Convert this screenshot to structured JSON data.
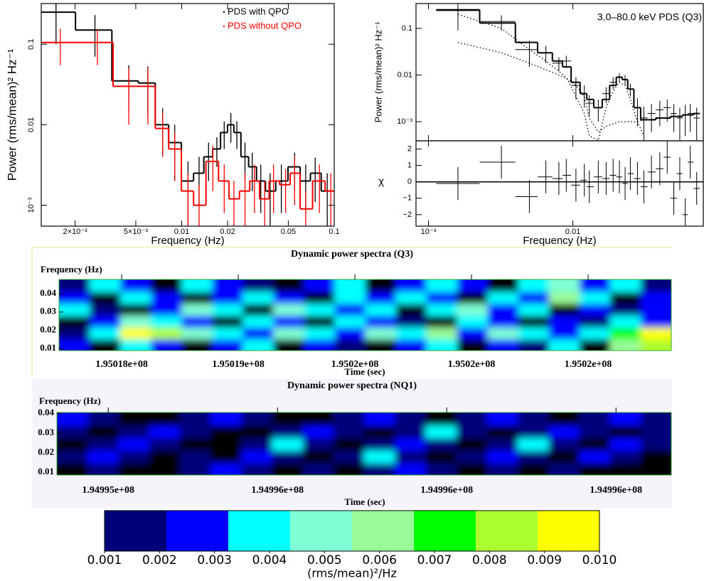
{
  "chart_data": [
    {
      "type": "step",
      "xlabel": "Frequency (Hz)",
      "ylabel": "Power (rms/mean)² Hz⁻¹",
      "xscale": "log",
      "yscale": "log",
      "xlim": [
        0.0012,
        0.1
      ],
      "ylim": [
        0.00055,
        0.32
      ],
      "xticks": [
        {
          "value": 0.002,
          "label": "2×10⁻³"
        },
        {
          "value": 0.005,
          "label": "5×10⁻³"
        },
        0.01,
        0.02,
        0.05,
        0.1
      ],
      "yticks": [
        {
          "value": 0.001,
          "label": "10⁻³"
        },
        0.01,
        0.1
      ],
      "legend": "upper right",
      "series": [
        {
          "name": "PDS with QPO",
          "color": "#000000",
          "x": [
            0.0015,
            0.0027,
            0.0045,
            0.006,
            0.0075,
            0.009,
            0.011,
            0.013,
            0.015,
            0.017,
            0.019,
            0.021,
            0.023,
            0.026,
            0.029,
            0.033,
            0.038,
            0.045,
            0.055,
            0.065,
            0.075,
            0.09
          ],
          "values": [
            0.25,
            0.15,
            0.035,
            0.033,
            0.01,
            0.006,
            0.002,
            0.0025,
            0.004,
            0.005,
            0.008,
            0.01,
            0.008,
            0.004,
            0.003,
            0.002,
            0.0015,
            0.002,
            0.003,
            0.002,
            0.0025,
            0.0015
          ],
          "errors": [
            0.15,
            0.08,
            0.02,
            0.02,
            0.006,
            0.004,
            0.0015,
            0.0015,
            0.002,
            0.002,
            0.003,
            0.004,
            0.003,
            0.002,
            0.0015,
            0.0012,
            0.001,
            0.0012,
            0.0015,
            0.0012,
            0.0014,
            0.001
          ]
        },
        {
          "name": "PDS without QPO",
          "color": "#ff0000",
          "x": [
            0.0016,
            0.0028,
            0.0045,
            0.006,
            0.0075,
            0.009,
            0.011,
            0.013,
            0.016,
            0.019,
            0.022,
            0.026,
            0.03,
            0.035,
            0.04,
            0.048,
            0.055,
            0.065,
            0.08,
            0.095
          ],
          "values": [
            0.105,
            0.105,
            0.03,
            0.03,
            0.009,
            0.005,
            0.0015,
            0.001,
            0.0035,
            0.002,
            0.0012,
            0.0015,
            0.002,
            0.0012,
            0.002,
            0.0018,
            0.0025,
            0.0009,
            0.002,
            0.0015
          ],
          "errors": [
            0.05,
            0.05,
            0.02,
            0.02,
            0.005,
            0.003,
            0.001,
            0.0008,
            0.002,
            0.0012,
            0.0008,
            0.001,
            0.0012,
            0.0008,
            0.0012,
            0.001,
            0.0015,
            0.0006,
            0.0012,
            0.001
          ]
        }
      ]
    },
    {
      "type": "step_fit",
      "annotation": "3.0–80.0 keV PDS (Q3)",
      "xlabel": "Frequency (Hz)",
      "ylabel": "Power (rms/mean)² Hz⁻¹",
      "residual_ylabel": "χ",
      "xscale": "log",
      "yscale": "log",
      "xlim": [
        0.00082,
        0.08
      ],
      "ylim": [
        0.00039,
        0.34
      ],
      "xticks": [
        {
          "value": 0.001,
          "label": "10⁻³"
        },
        0.01
      ],
      "yticks": [
        {
          "value": 0.001,
          "label": "10⁻³"
        },
        0.01,
        0.1
      ],
      "residual_ylim": [
        -2.7,
        2.5
      ],
      "residual_yticks": [
        {
          "value": -2,
          "label": "−2"
        },
        {
          "value": -1,
          "label": "−1"
        },
        0,
        1,
        2
      ],
      "x": [
        0.0016,
        0.0032,
        0.005,
        0.0065,
        0.008,
        0.009,
        0.0105,
        0.012,
        0.013,
        0.015,
        0.017,
        0.019,
        0.021,
        0.023,
        0.025,
        0.028,
        0.031,
        0.035,
        0.04,
        0.045,
        0.05,
        0.055,
        0.06,
        0.065,
        0.072
      ],
      "values": [
        0.24,
        0.14,
        0.035,
        0.03,
        0.018,
        0.02,
        0.006,
        0.004,
        0.0025,
        0.002,
        0.004,
        0.007,
        0.009,
        0.008,
        0.005,
        0.002,
        0.0012,
        0.0015,
        0.0018,
        0.002,
        0.0015,
        0.0012,
        0.0014,
        0.0015,
        0.0012
      ],
      "errors": [
        0.15,
        0.05,
        0.02,
        0.012,
        0.006,
        0.006,
        0.003,
        0.002,
        0.0012,
        0.001,
        0.0015,
        0.002,
        0.002,
        0.002,
        0.0015,
        0.0012,
        0.0009,
        0.0009,
        0.001,
        0.001,
        0.0009,
        0.0008,
        0.0009,
        0.0009,
        0.0008
      ],
      "model": [
        0.25,
        0.13,
        0.05,
        0.03,
        0.02,
        0.015,
        0.007,
        0.004,
        0.003,
        0.002,
        0.003,
        0.006,
        0.009,
        0.008,
        0.005,
        0.002,
        0.0011,
        0.0011,
        0.0012,
        0.0012,
        0.0013,
        0.0013,
        0.0014,
        0.0014,
        0.0015
      ],
      "components": [
        [
          0.05,
          0.03,
          0.018,
          0.013,
          0.01,
          0.0085,
          0.006,
          0.0035,
          0.0012,
          0.0006,
          0.0008,
          0.0009,
          0.001,
          0.001,
          0.001,
          0.001,
          0.0011,
          0.0011,
          0.0012,
          0.0012,
          0.0013,
          0.0013,
          0.0014,
          0.0014,
          0.0015
        ],
        [
          0.2,
          0.1,
          0.035,
          0.02,
          0.012,
          0.009,
          0.0035,
          0.0015,
          0.0005,
          0.0004,
          0.002,
          0.0045,
          0.007,
          0.006,
          0.003,
          0.001,
          0.0005,
          null,
          null,
          null,
          null,
          null,
          null,
          null,
          null
        ]
      ],
      "residuals": [
        -0.1,
        1.2,
        -0.9,
        0.3,
        0.2,
        0.4,
        -0.2,
        0.1,
        -0.3,
        0.3,
        0.2,
        0.4,
        0.3,
        -0.1,
        0.5,
        0.2,
        -0.3,
        0.6,
        0.8,
        1.5,
        -1,
        0.5,
        -2,
        1.2,
        -0.4
      ],
      "residual_errors": [
        1,
        1,
        1,
        1,
        1,
        1,
        1,
        1,
        1,
        1,
        1,
        1,
        1,
        1,
        1,
        1,
        1,
        1,
        1,
        1,
        1,
        1,
        1,
        1,
        1
      ]
    },
    {
      "type": "heatmap",
      "title": "Dynamic power spectra (Q3)",
      "ylabel": "Frequency (Hz)",
      "xlabel": "Time (sec)",
      "xlim": [
        195017463,
        195022713
      ],
      "ylim": [
        0.0089,
        0.0478
      ],
      "xticks": [
        {
          "value": 195018000,
          "label": "1.95018e+08"
        },
        {
          "value": 195019000,
          "label": "1.95019e+08"
        },
        {
          "value": 195020000,
          "label": "1.9502e+08"
        },
        {
          "value": 195021000,
          "label": "1.9502e+08"
        },
        {
          "value": 195022000,
          "label": "1.9502e+08"
        }
      ],
      "yticks": [
        0.01,
        0.02,
        0.03,
        0.04
      ],
      "z": [
        [
          0.003,
          0.0008,
          0.004,
          0.003,
          0.0006,
          0.003,
          0.004,
          0.0007,
          0.003,
          0.002,
          0.0008,
          0.003,
          0.004,
          0.0009,
          0.003,
          0.002,
          0.004,
          0.0007,
          0.006,
          0.008
        ],
        [
          0.002,
          0.004,
          0.009,
          0.008,
          0.005,
          0.004,
          0.003,
          0.005,
          0.004,
          0.003,
          0.005,
          0.004,
          0.006,
          0.003,
          0.005,
          0.004,
          0.003,
          0.004,
          0.007,
          0.009
        ],
        [
          0.0007,
          0.003,
          0.005,
          0.004,
          0.003,
          0.0008,
          0.004,
          0.003,
          0.0006,
          0.004,
          0.003,
          0.002,
          0.0008,
          0.004,
          0.003,
          0.0007,
          0.003,
          0.002,
          0.004,
          0.003
        ],
        [
          0.004,
          0.002,
          0.0008,
          0.003,
          0.005,
          0.004,
          0.0009,
          0.005,
          0.004,
          0.003,
          0.004,
          0.0007,
          0.004,
          0.005,
          0.003,
          0.004,
          0.0008,
          0.003,
          0.002,
          0.003
        ],
        [
          0.003,
          0.0009,
          0.004,
          0.003,
          0.0006,
          0.003,
          0.004,
          0.003,
          0.0008,
          0.004,
          0.003,
          0.004,
          0.003,
          0.0007,
          0.004,
          0.003,
          0.006,
          0.004,
          0.0009,
          0.003
        ],
        [
          0.002,
          0.004,
          0.003,
          0.0007,
          0.004,
          0.003,
          0.002,
          0.0008,
          0.003,
          0.004,
          0.0006,
          0.003,
          0.004,
          0.003,
          0.0009,
          0.004,
          0.005,
          0.003,
          0.004,
          0.002
        ]
      ]
    },
    {
      "type": "heatmap",
      "title": "Dynamic power spectra (NQ1)",
      "ylabel": "Frequency (Hz)",
      "xlabel": "Time (sec)",
      "xlim": [
        194995209,
        194996298
      ],
      "ylim": [
        0.0086,
        0.0404
      ],
      "xticks": [
        {
          "value": 194995300,
          "label": "1.94995e+08"
        },
        {
          "value": 194995600,
          "label": "1.94996e+08"
        },
        {
          "value": 194995900,
          "label": "1.94996e+08"
        },
        {
          "value": 194996200,
          "label": "1.94996e+08"
        }
      ],
      "yticks": [
        0.01,
        0.02,
        0.03,
        0.04
      ],
      "z": [
        [
          0.0008,
          0.002,
          0.0005,
          0.0006,
          0.002,
          0.003,
          0.002,
          0.0007,
          0.002,
          0.0006,
          0.002,
          0.003,
          0.002,
          0.0008,
          0.002,
          0.0005,
          0.002,
          0.0007,
          0.0005,
          0.0006
        ],
        [
          0.002,
          0.003,
          0.002,
          0.0008,
          0.002,
          0.0007,
          0.003,
          0.002,
          0.0006,
          0.002,
          0.0035,
          0.002,
          0.0009,
          0.002,
          0.003,
          0.002,
          0.0008,
          0.003,
          0.002,
          0.0007
        ],
        [
          0.0007,
          0.002,
          0.003,
          0.002,
          0.0009,
          0.0006,
          0.002,
          0.0035,
          0.002,
          0.0008,
          0.002,
          0.003,
          0.002,
          0.0007,
          0.002,
          0.0035,
          0.002,
          0.0008,
          0.003,
          0.002
        ],
        [
          0.002,
          0.0006,
          0.002,
          0.003,
          0.002,
          0.0008,
          0.0007,
          0.002,
          0.003,
          0.002,
          0.0008,
          0.002,
          0.0035,
          0.002,
          0.0006,
          0.002,
          0.003,
          0.002,
          0.0009,
          0.002
        ],
        [
          0.003,
          0.002,
          0.0005,
          0.0006,
          0.002,
          0.003,
          0.002,
          0.0008,
          0.0006,
          0.002,
          0.003,
          0.002,
          0.0007,
          0.002,
          0.003,
          0.002,
          0.0007,
          0.002,
          0.003,
          0.002
        ]
      ]
    },
    {
      "type": "colorbar",
      "label": "(rms/mean)²/Hz",
      "xlim": [
        0.001,
        0.01
      ],
      "xticks": [
        0.001,
        0.002,
        0.003,
        0.004,
        0.005,
        0.006,
        0.007,
        0.008,
        0.009,
        {
          "value": 0.01,
          "label": "0.010"
        }
      ],
      "levels": [
        0.001,
        0.002125,
        0.00325,
        0.004375,
        0.0055,
        0.006625,
        0.00775,
        0.008875,
        0.01
      ],
      "colors": [
        "#00007a",
        "#0000ff",
        "#00ffff",
        "#7fffd4",
        "#98fb98",
        "#00ff00",
        "#adff2f",
        "#ffff00"
      ]
    }
  ]
}
